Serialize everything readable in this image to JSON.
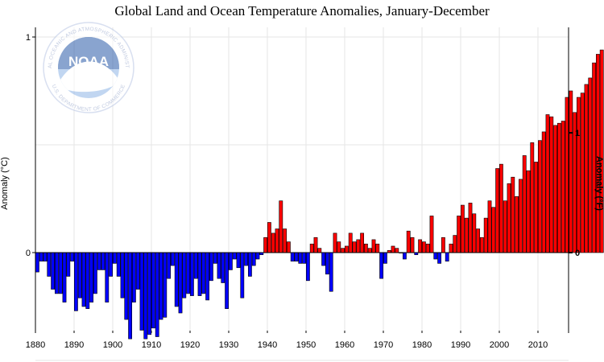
{
  "chart_data": {
    "type": "bar",
    "title": "Global Land and Ocean Temperature Anomalies, January-December",
    "ylabel_left": "Anomaly (°C)",
    "ylabel_right": "Anomaly (°F)",
    "xlabel": "",
    "xlim": [
      1880,
      2016
    ],
    "ylim": [
      -0.6,
      1.0
    ],
    "x_ticks": [
      "1880",
      "1890",
      "1900",
      "1910",
      "1920",
      "1930",
      "1940",
      "1950",
      "1960",
      "1970",
      "1980",
      "1990",
      "2000",
      "2010"
    ],
    "left_ticks": [
      "1",
      "0"
    ],
    "right_ticks": [
      "1",
      "0"
    ],
    "grid": true,
    "colors": {
      "positive": "#ff0000",
      "negative": "#0000ff",
      "outline": "#000000",
      "grid": "#e6e6e6"
    },
    "x_start": 1880,
    "values": [
      -0.09,
      -0.04,
      -0.04,
      -0.11,
      -0.17,
      -0.19,
      -0.19,
      -0.23,
      -0.11,
      -0.04,
      -0.27,
      -0.21,
      -0.25,
      -0.26,
      -0.23,
      -0.19,
      -0.08,
      -0.08,
      -0.23,
      -0.11,
      -0.05,
      -0.11,
      -0.21,
      -0.31,
      -0.4,
      -0.23,
      -0.17,
      -0.36,
      -0.4,
      -0.38,
      -0.35,
      -0.39,
      -0.31,
      -0.3,
      -0.12,
      -0.06,
      -0.25,
      -0.28,
      -0.21,
      -0.19,
      -0.2,
      -0.12,
      -0.2,
      -0.19,
      -0.22,
      -0.13,
      -0.05,
      -0.12,
      -0.14,
      -0.26,
      -0.08,
      -0.03,
      -0.07,
      -0.21,
      -0.06,
      -0.11,
      -0.06,
      -0.03,
      -0.01,
      0.07,
      0.14,
      0.09,
      0.11,
      0.24,
      0.11,
      0.05,
      -0.04,
      -0.04,
      -0.05,
      -0.05,
      -0.13,
      0.04,
      0.07,
      0.02,
      -0.06,
      -0.1,
      -0.18,
      0.09,
      0.05,
      0.02,
      0.03,
      0.09,
      0.05,
      0.06,
      0.09,
      0.04,
      0.02,
      0.06,
      0.04,
      -0.12,
      -0.05,
      0.01,
      0.03,
      0.02,
      0.0,
      -0.03,
      0.1,
      0.07,
      -0.01,
      0.06,
      0.05,
      0.04,
      0.17,
      -0.03,
      -0.05,
      0.07,
      -0.04,
      0.04,
      0.08,
      0.17,
      0.22,
      0.16,
      0.23,
      0.18,
      0.11,
      0.07,
      0.16,
      0.24,
      0.21,
      0.39,
      0.41,
      0.24,
      0.32,
      0.35,
      0.26,
      0.34,
      0.45,
      0.38,
      0.51,
      0.42,
      0.52,
      0.56,
      0.64,
      0.63,
      0.59,
      0.6,
      0.61,
      0.72,
      0.75,
      0.65,
      0.72,
      0.74,
      0.78,
      0.81,
      0.88,
      0.92,
      0.94
    ]
  },
  "logo": {
    "name": "NOAA",
    "ring_top": "NATIONAL OCEANIC AND ATMOSPHERIC ADMINISTRATION",
    "ring_bottom": "U.S. DEPARTMENT OF COMMERCE"
  }
}
